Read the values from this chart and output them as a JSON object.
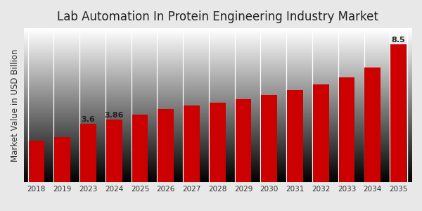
{
  "title": "Lab Automation In Protein Engineering Industry Market",
  "ylabel": "Market Value in USD Billion",
  "categories": [
    "2018",
    "2019",
    "2023",
    "2024",
    "2025",
    "2026",
    "2027",
    "2028",
    "2029",
    "2030",
    "2031",
    "2032",
    "2033",
    "2034",
    "2035"
  ],
  "values": [
    2.55,
    2.78,
    3.6,
    3.86,
    4.18,
    4.52,
    4.72,
    4.88,
    5.12,
    5.38,
    5.68,
    6.02,
    6.45,
    7.05,
    8.5
  ],
  "bar_color": "#cc0000",
  "bg_color_top": "#f0f0f0",
  "bg_color_bottom": "#d0d0d0",
  "annotated_bars": {
    "2023": "3.6",
    "2024": "3.86",
    "2035": "8.5"
  },
  "title_fontsize": 12,
  "label_fontsize": 8.5,
  "tick_fontsize": 7.5,
  "ylim": [
    0,
    9.5
  ],
  "bar_width": 0.62,
  "bottom_strip_color": "#bb0000",
  "divider_color": "#ffffff"
}
